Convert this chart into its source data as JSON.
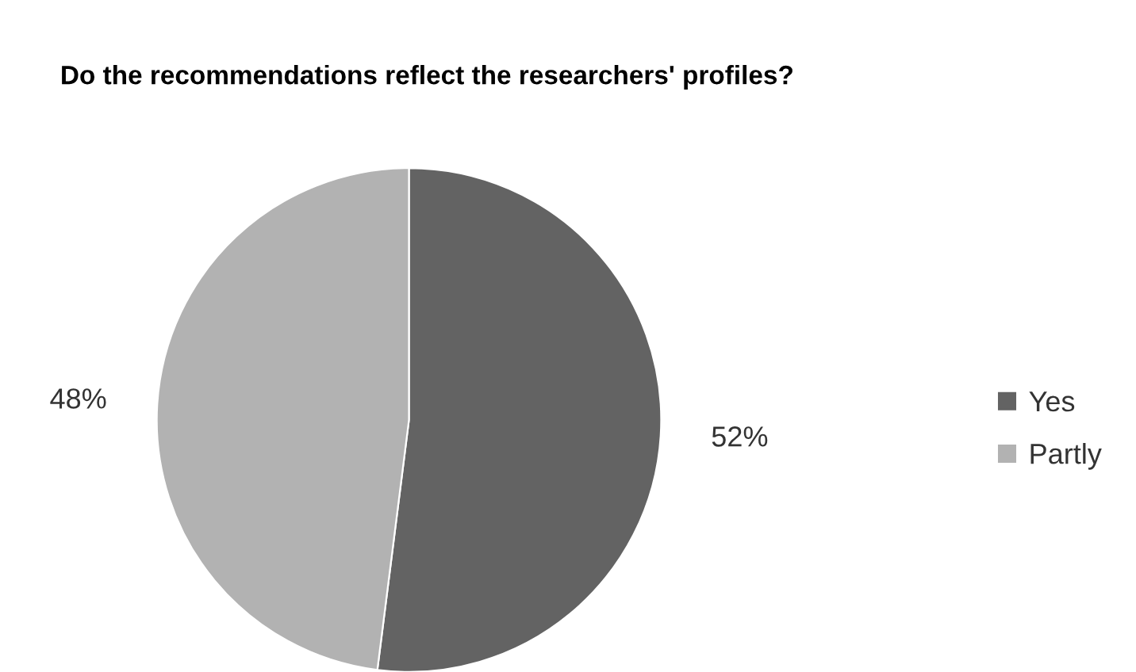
{
  "chart_data": {
    "type": "pie",
    "title": "Do the recommendations reflect the researchers' profiles?",
    "categories": [
      "Yes",
      "Partly"
    ],
    "values": [
      52,
      48
    ],
    "colors": [
      "#636363",
      "#b2b2b2"
    ],
    "value_labels": [
      "52%",
      "48%"
    ],
    "legend": "right"
  }
}
